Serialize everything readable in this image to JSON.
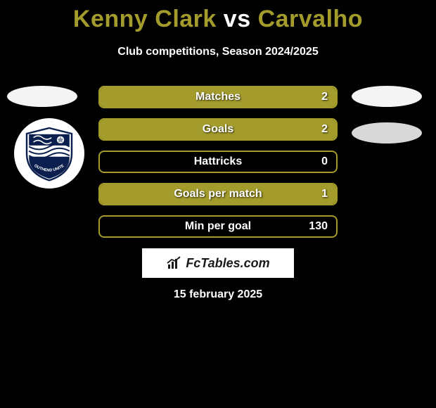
{
  "title": {
    "player1": "Kenny Clark",
    "vs": "vs",
    "player2": "Carvalho"
  },
  "subtitle": "Club competitions, Season 2024/2025",
  "accent_color": "#a39b2b",
  "stat_bar": {
    "border_color": "#a39b2b",
    "fill_color": "#a39b2b",
    "label_color": "#ffffff",
    "value_color": "#ffffff",
    "border_radius": 8,
    "height": 32
  },
  "stats": [
    {
      "label": "Matches",
      "value": "2",
      "fill_pct": 100
    },
    {
      "label": "Goals",
      "value": "2",
      "fill_pct": 100
    },
    {
      "label": "Hattricks",
      "value": "0",
      "fill_pct": 0
    },
    {
      "label": "Goals per match",
      "value": "1",
      "fill_pct": 100
    },
    {
      "label": "Min per goal",
      "value": "130",
      "fill_pct": 0
    }
  ],
  "brand": "FcTables.com",
  "date": "15 february 2025",
  "crest": {
    "top_color": "#0a1f4d",
    "mid_color": "#ffffff",
    "banner_text": "SOUTHEND UNITED",
    "banner_color": "#0a1f4d"
  }
}
